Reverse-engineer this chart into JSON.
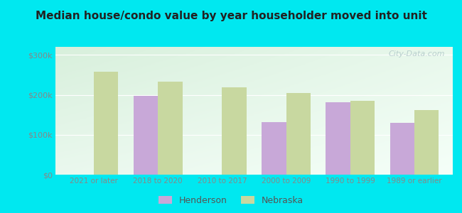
{
  "title": "Median house/condo value by year householder moved into unit",
  "categories": [
    "2021 or later",
    "2018 to 2020",
    "2010 to 2017",
    "2000 to 2009",
    "1990 to 1999",
    "1989 or earlier"
  ],
  "henderson": [
    null,
    198000,
    null,
    132000,
    182000,
    130000
  ],
  "nebraska": [
    258000,
    232000,
    218000,
    205000,
    185000,
    162000
  ],
  "henderson_color": "#c8a8d8",
  "nebraska_color": "#c8d8a0",
  "background_color": "#00e8f0",
  "plot_bg_topleft": "#d8f0dc",
  "plot_bg_bottomright": "#f5fff8",
  "ylabel_color": "#888888",
  "xlabel_color": "#888888",
  "title_color": "#222222",
  "ylim": [
    0,
    320000
  ],
  "yticks": [
    0,
    100000,
    200000,
    300000
  ],
  "ytick_labels": [
    "$0",
    "$100k",
    "$200k",
    "$300k"
  ],
  "watermark": "City-Data.com",
  "bar_width": 0.38,
  "legend_henderson": "Henderson",
  "legend_nebraska": "Nebraska"
}
